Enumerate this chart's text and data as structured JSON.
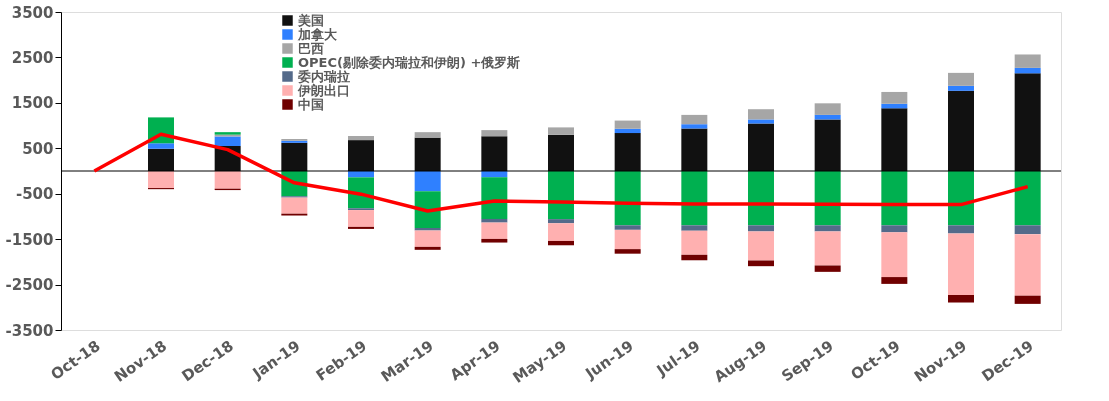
{
  "chart_data": {
    "type": "bar",
    "stacked": true,
    "categories": [
      "Oct-18",
      "Nov-18",
      "Dec-18",
      "Jan-19",
      "Feb-19",
      "Mar-19",
      "Apr-19",
      "May-19",
      "Jun-19",
      "Jul-19",
      "Aug-19",
      "Sep-19",
      "Oct-19",
      "Nov-19",
      "Dec-19"
    ],
    "series": [
      {
        "name": "美国",
        "color": "#111111",
        "values": [
          null,
          490,
          550,
          620,
          680,
          735,
          765,
          800,
          835,
          935,
          1045,
          1135,
          1380,
          1765,
          2150
        ]
      },
      {
        "name": "加拿大",
        "color": "#2f80ff",
        "values": [
          null,
          120,
          210,
          45,
          -140,
          -445,
          -140,
          null,
          95,
          95,
          90,
          100,
          100,
          110,
          120
        ]
      },
      {
        "name": "巴西",
        "color": "#a6a6a6",
        "values": [
          null,
          null,
          40,
          40,
          90,
          120,
          135,
          160,
          180,
          205,
          225,
          255,
          260,
          285,
          295
        ]
      },
      {
        "name": "OPEC(剔除委内瑞拉和伊朗) +俄罗斯",
        "color": "#00b050",
        "values": [
          null,
          570,
          55,
          -555,
          -680,
          -810,
          -915,
          -1060,
          -1195,
          -1195,
          -1195,
          -1195,
          -1195,
          -1195,
          -1195
        ]
      },
      {
        "name": "委内瑞拉",
        "color": "#546a8a",
        "values": [
          null,
          null,
          null,
          -30,
          -40,
          -55,
          -80,
          -90,
          -100,
          -120,
          -135,
          -135,
          -155,
          -180,
          -195
        ]
      },
      {
        "name": "伊朗出口",
        "color": "#ffb0b0",
        "values": [
          null,
          -375,
          -390,
          -355,
          -370,
          -360,
          -360,
          -390,
          -425,
          -530,
          -640,
          -750,
          -985,
          -1355,
          -1355
        ]
      },
      {
        "name": "中国",
        "color": "#700000",
        "values": [
          null,
          -25,
          -30,
          -40,
          -45,
          -65,
          -80,
          -95,
          -100,
          -120,
          -125,
          -140,
          -150,
          -165,
          -180
        ]
      },
      {
        "type": "line",
        "color": "#ff0000",
        "values": [
          0,
          810,
          470,
          -260,
          -510,
          -880,
          -660,
          -685,
          -710,
          -725,
          -725,
          -730,
          -740,
          -740,
          -345
        ]
      }
    ],
    "ylim": [
      -3500,
      3500
    ],
    "yticks": [
      -3500,
      -2500,
      -1500,
      -500,
      500,
      1500,
      2500,
      3500
    ],
    "ref_lines": [
      {
        "axis": "y",
        "value": 0,
        "color": "#000000"
      }
    ],
    "grid": false,
    "legend": "top",
    "marker": "none",
    "line_style": "solid"
  }
}
